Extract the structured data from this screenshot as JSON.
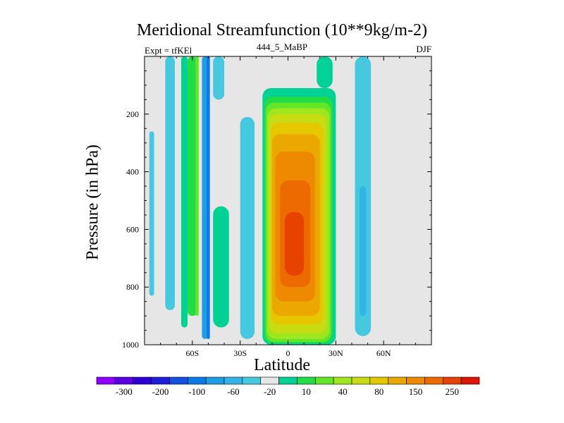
{
  "chart_data": {
    "type": "heatmap",
    "title": "Meridional Streamfunction (10**9kg/m-2)",
    "left_label": "Expt = tfKEl",
    "center_label": "444_5_MaBP",
    "right_label": "DJF",
    "xlabel": "Latitude",
    "ylabel": "Pressure (in hPa)",
    "xlim": [
      -90,
      90
    ],
    "ylim": [
      1000,
      0
    ],
    "x_ticks": [
      {
        "value": -60,
        "label": "60S"
      },
      {
        "value": -30,
        "label": "30S"
      },
      {
        "value": 0,
        "label": "0"
      },
      {
        "value": 30,
        "label": "30N"
      },
      {
        "value": 60,
        "label": "60N"
      }
    ],
    "y_ticks": [
      {
        "value": 200,
        "label": "200"
      },
      {
        "value": 400,
        "label": "400"
      },
      {
        "value": 600,
        "label": "600"
      },
      {
        "value": 800,
        "label": "800"
      },
      {
        "value": 1000,
        "label": "1000"
      }
    ],
    "colorbar": {
      "colors": [
        "#8f00ff",
        "#5b00e6",
        "#2e00d6",
        "#1f1fd9",
        "#1450e0",
        "#0a7ae8",
        "#1e9ee6",
        "#32b4e6",
        "#46c8e0",
        "#e6e6e6",
        "#00d296",
        "#22dc46",
        "#64e628",
        "#a0e61e",
        "#c8dc14",
        "#e6c800",
        "#eba800",
        "#ee8a00",
        "#ec6a00",
        "#e84200",
        "#dc1400"
      ],
      "labels": [
        {
          "index": 1,
          "text": "-300"
        },
        {
          "index": 3,
          "text": "-200"
        },
        {
          "index": 5,
          "text": "-100"
        },
        {
          "index": 7,
          "text": "-60"
        },
        {
          "index": 9,
          "text": "-20"
        },
        {
          "index": 11,
          "text": "10"
        },
        {
          "index": 13,
          "text": "40"
        },
        {
          "index": 15,
          "text": "80"
        },
        {
          "index": 17,
          "text": "150"
        },
        {
          "index": 19,
          "text": "250"
        }
      ]
    },
    "background_color": "#e6e6e6",
    "cells": [
      {
        "lat": [
          -87,
          -84
        ],
        "p": [
          260,
          830
        ],
        "color_index": 8
      },
      {
        "lat": [
          -77,
          -71
        ],
        "p": [
          0,
          880
        ],
        "color_index": 8
      },
      {
        "lat": [
          -67,
          -63
        ],
        "p": [
          0,
          940
        ],
        "color_index": 10
      },
      {
        "lat": [
          -63,
          -57
        ],
        "p": [
          0,
          900
        ],
        "color_index": 11
      },
      {
        "lat": [
          -58,
          -56
        ],
        "p": [
          0,
          900
        ],
        "color_index": 12
      },
      {
        "lat": [
          -54,
          -50
        ],
        "p": [
          0,
          980
        ],
        "color_index": 6
      },
      {
        "lat": [
          -51,
          -49
        ],
        "p": [
          0,
          980
        ],
        "color_index": 5
      },
      {
        "lat": [
          -47,
          -40
        ],
        "p": [
          0,
          150
        ],
        "color_index": 8
      },
      {
        "lat": [
          -47,
          -37
        ],
        "p": [
          520,
          940
        ],
        "color_index": 10
      },
      {
        "lat": [
          -30,
          -21
        ],
        "p": [
          210,
          980
        ],
        "color_index": 8
      },
      {
        "lat": [
          -16,
          30
        ],
        "p": [
          110,
          1000
        ],
        "color_index": 10
      },
      {
        "lat": [
          -15,
          28
        ],
        "p": [
          140,
          995
        ],
        "color_index": 11
      },
      {
        "lat": [
          -14,
          27
        ],
        "p": [
          160,
          990
        ],
        "color_index": 12
      },
      {
        "lat": [
          -13,
          26
        ],
        "p": [
          180,
          980
        ],
        "color_index": 13
      },
      {
        "lat": [
          -12,
          24
        ],
        "p": [
          200,
          960
        ],
        "color_index": 14
      },
      {
        "lat": [
          -11,
          22
        ],
        "p": [
          230,
          930
        ],
        "color_index": 15
      },
      {
        "lat": [
          -10,
          20
        ],
        "p": [
          270,
          900
        ],
        "color_index": 16
      },
      {
        "lat": [
          -8,
          17
        ],
        "p": [
          330,
          850
        ],
        "color_index": 17
      },
      {
        "lat": [
          -5,
          14
        ],
        "p": [
          430,
          800
        ],
        "color_index": 18
      },
      {
        "lat": [
          -2,
          10
        ],
        "p": [
          540,
          760
        ],
        "color_index": 19
      },
      {
        "lat": [
          18,
          28
        ],
        "p": [
          0,
          110
        ],
        "color_index": 10
      },
      {
        "lat": [
          42,
          52
        ],
        "p": [
          0,
          970
        ],
        "color_index": 8
      },
      {
        "lat": [
          45,
          49
        ],
        "p": [
          450,
          900
        ],
        "color_index": 7
      }
    ]
  }
}
